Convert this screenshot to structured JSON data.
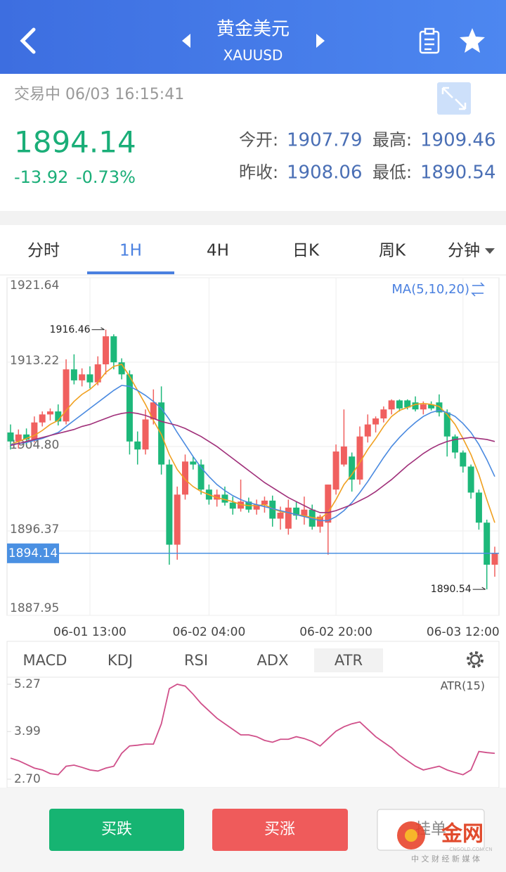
{
  "header": {
    "title": "黄金美元",
    "subtitle": "XAUUSD"
  },
  "status": "交易中 06/03 16:15:41",
  "quote": {
    "price": "1894.14",
    "change": "-13.92",
    "change_pct": "-0.73%",
    "stats": [
      {
        "label": "今开:",
        "value": "1907.79"
      },
      {
        "label": "最高:",
        "value": "1909.46"
      },
      {
        "label": "昨收:",
        "value": "1908.06"
      },
      {
        "label": "最低:",
        "value": "1890.54"
      }
    ]
  },
  "tabs": [
    "分时",
    "1H",
    "4H",
    "日K",
    "周K",
    "分钟"
  ],
  "indicator_tabs": [
    "MACD",
    "KDJ",
    "RSI",
    "ADX",
    "ATR"
  ],
  "buttons": [
    "买跌",
    "买涨",
    "挂单"
  ],
  "watermark": {
    "name": "金网",
    "url": "CNGOLD.COM.CN",
    "slogan": "中 文 财 经 新 媒 体"
  },
  "chart_data": [
    {
      "type": "candlestick",
      "legend": "MA(5,10,20)",
      "up_color": "#f0605f",
      "down_color": "#1db87a",
      "categories": [
        null,
        null,
        null,
        null,
        null,
        null,
        null,
        null,
        null,
        null,
        "06-01 13:00",
        null,
        null,
        null,
        null,
        null,
        null,
        null,
        null,
        null,
        null,
        null,
        null,
        null,
        null,
        "06-02 04:00",
        null,
        null,
        null,
        null,
        null,
        null,
        null,
        null,
        null,
        null,
        null,
        null,
        null,
        null,
        null,
        "06-02 20:00",
        null,
        null,
        null,
        null,
        null,
        null,
        null,
        null,
        null,
        null,
        null,
        null,
        null,
        null,
        null,
        "06-03 12:00",
        null,
        null,
        null,
        null
      ],
      "open": [
        1906.2,
        1905.3,
        1906.0,
        1905.5,
        1907.2,
        1908.0,
        1908.3,
        1907.3,
        1912.5,
        1911.4,
        1912.0,
        1911.2,
        1913.0,
        1915.8,
        1913.2,
        1912.0,
        1905.3,
        1904.5,
        1907.5,
        1909.2,
        1903.0,
        1895.0,
        1900.0,
        1903.3,
        1903.0,
        1900.5,
        1899.5,
        1900.0,
        1899.2,
        1898.6,
        1899.3,
        1898.5,
        1899.0,
        1899.4,
        1897.6,
        1896.6,
        1898.7,
        1897.9,
        1898.5,
        1896.8,
        1897.2,
        1900.5,
        1903.0,
        1903.8,
        1901.5,
        1905.8,
        1907.0,
        1907.6,
        1908.5,
        1909.4,
        1909.4,
        1909.2,
        1908.5,
        1909.0,
        1909.2,
        1908.2,
        1905.8,
        1904.2,
        1902.8,
        1900.2,
        1897.2,
        1893.0
      ],
      "high": [
        1907.0,
        1906.5,
        1906.6,
        1907.8,
        1908.3,
        1908.6,
        1909.0,
        1913.5,
        1914.0,
        1912.6,
        1912.8,
        1913.8,
        1916.46,
        1916.0,
        1913.6,
        1912.4,
        1906.3,
        1908.5,
        1910.5,
        1910.8,
        1903.5,
        1900.8,
        1904.0,
        1903.8,
        1903.5,
        1901.0,
        1900.5,
        1900.8,
        1899.8,
        1901.5,
        1899.7,
        1899.5,
        1899.8,
        1899.9,
        1898.8,
        1899.5,
        1899.3,
        1899.8,
        1899.0,
        1898.0,
        1901.0,
        1905.0,
        1908.5,
        1904.2,
        1906.8,
        1908.0,
        1907.8,
        1908.8,
        1909.5,
        1909.5,
        1909.5,
        1909.8,
        1909.3,
        1909.3,
        1910.0,
        1908.5,
        1906.0,
        1904.4,
        1903.0,
        1900.5,
        1897.5,
        1894.8
      ],
      "low": [
        1904.5,
        1904.6,
        1905.0,
        1905.2,
        1906.8,
        1907.4,
        1906.9,
        1907.0,
        1911.0,
        1910.8,
        1910.6,
        1910.9,
        1912.0,
        1912.5,
        1911.5,
        1904.0,
        1903.0,
        1904.0,
        1907.0,
        1902.0,
        1893.0,
        1893.5,
        1899.5,
        1902.5,
        1900.0,
        1899.0,
        1898.8,
        1898.9,
        1898.0,
        1898.3,
        1898.2,
        1898.0,
        1898.2,
        1896.8,
        1896.5,
        1896.0,
        1897.5,
        1897.0,
        1896.5,
        1896.2,
        1894.0,
        1900.0,
        1902.8,
        1900.3,
        1901.0,
        1905.2,
        1906.2,
        1907.2,
        1908.0,
        1908.3,
        1908.5,
        1908.3,
        1908.0,
        1908.4,
        1907.8,
        1903.8,
        1903.6,
        1902.2,
        1899.6,
        1896.5,
        1890.54,
        1891.8
      ],
      "close": [
        1905.3,
        1906.0,
        1905.5,
        1907.2,
        1908.0,
        1908.3,
        1907.3,
        1912.5,
        1911.4,
        1912.0,
        1911.2,
        1913.0,
        1915.8,
        1913.2,
        1912.0,
        1905.3,
        1904.5,
        1907.5,
        1909.2,
        1903.0,
        1895.0,
        1900.0,
        1903.3,
        1903.0,
        1900.5,
        1899.5,
        1900.0,
        1899.2,
        1898.6,
        1899.3,
        1898.5,
        1899.0,
        1899.4,
        1897.6,
        1898.2,
        1898.7,
        1897.9,
        1898.5,
        1896.8,
        1897.8,
        1901.0,
        1904.3,
        1904.8,
        1901.5,
        1905.8,
        1907.0,
        1907.6,
        1908.5,
        1909.4,
        1908.6,
        1908.7,
        1908.5,
        1909.0,
        1908.6,
        1908.2,
        1905.8,
        1904.2,
        1902.8,
        1900.2,
        1897.2,
        1893.0,
        1894.14
      ],
      "overlays": [
        {
          "color": "#f0a020",
          "values": [
            1905.0,
            1905.3,
            1905.6,
            1905.9,
            1906.4,
            1907.0,
            1907.4,
            1908.4,
            1909.3,
            1910.0,
            1910.5,
            1911.2,
            1912.2,
            1912.8,
            1913.0,
            1911.8,
            1910.4,
            1909.0,
            1907.4,
            1906.0,
            1904.0,
            1902.5,
            1901.5,
            1900.8,
            1900.3,
            1900.0,
            1899.7,
            1899.5,
            1899.3,
            1899.0,
            1898.9,
            1898.9,
            1899.0,
            1898.6,
            1898.3,
            1898.2,
            1898.0,
            1897.9,
            1897.7,
            1897.6,
            1898.2,
            1899.5,
            1901.0,
            1902.0,
            1903.2,
            1904.5,
            1905.6,
            1906.8,
            1907.8,
            1908.4,
            1908.7,
            1909.0,
            1909.1,
            1909.0,
            1908.8,
            1908.0,
            1907.0,
            1905.6,
            1904.0,
            1902.0,
            1899.5,
            1897.2
          ]
        },
        {
          "color": "#4a8ae0",
          "values": [
            1905.0,
            1905.1,
            1905.2,
            1905.4,
            1905.6,
            1905.9,
            1906.2,
            1906.8,
            1907.4,
            1908.0,
            1908.6,
            1909.2,
            1909.8,
            1910.4,
            1910.9,
            1910.8,
            1910.4,
            1909.9,
            1909.3,
            1908.6,
            1907.5,
            1906.2,
            1905.0,
            1903.8,
            1902.7,
            1901.8,
            1901.0,
            1900.4,
            1899.9,
            1899.5,
            1899.2,
            1899.0,
            1898.8,
            1898.6,
            1898.4,
            1898.2,
            1898.0,
            1897.8,
            1897.6,
            1897.4,
            1897.4,
            1897.8,
            1898.4,
            1899.2,
            1900.2,
            1901.3,
            1902.5,
            1903.7,
            1904.8,
            1905.7,
            1906.5,
            1907.2,
            1907.8,
            1908.2,
            1908.4,
            1908.2,
            1907.8,
            1907.1,
            1906.2,
            1905.0,
            1903.5,
            1901.8
          ]
        },
        {
          "color": "#a0307a",
          "values": [
            1904.9,
            1905.1,
            1905.3,
            1905.5,
            1905.7,
            1905.9,
            1906.1,
            1906.3,
            1906.5,
            1906.8,
            1907.0,
            1907.3,
            1907.6,
            1907.9,
            1908.1,
            1908.2,
            1908.1,
            1907.9,
            1907.6,
            1907.3,
            1907.1,
            1906.9,
            1906.6,
            1906.2,
            1905.8,
            1905.3,
            1904.8,
            1904.2,
            1903.6,
            1903.0,
            1902.4,
            1901.8,
            1901.2,
            1900.7,
            1900.2,
            1899.7,
            1899.3,
            1898.9,
            1898.5,
            1898.2,
            1898.2,
            1898.4,
            1898.7,
            1899.0,
            1899.4,
            1899.8,
            1900.3,
            1900.9,
            1901.5,
            1902.2,
            1902.9,
            1903.5,
            1904.1,
            1904.6,
            1905.0,
            1905.3,
            1905.5,
            1905.6,
            1905.7,
            1905.6,
            1905.5,
            1905.3
          ]
        }
      ],
      "high_label": 1916.46,
      "low_label": 1890.54,
      "last": 1894.14,
      "last_color": "#4a90e2",
      "ylim": [
        1887.95,
        1921.64
      ],
      "yticks": [
        1921.64,
        1913.22,
        {
          "value": 1904.8,
          "label": "1904.80"
        },
        1896.37,
        1887.95
      ],
      "grid": true
    },
    {
      "type": "line",
      "legend": "ATR(15)",
      "color": "#d0508a",
      "values": [
        3.27,
        3.2,
        3.1,
        3.0,
        2.95,
        2.85,
        2.82,
        3.05,
        3.08,
        3.02,
        2.95,
        2.92,
        3.0,
        3.05,
        3.4,
        3.6,
        3.62,
        3.65,
        3.65,
        4.2,
        5.15,
        5.27,
        5.22,
        5.0,
        4.75,
        4.55,
        4.35,
        4.2,
        4.05,
        3.9,
        3.9,
        3.85,
        3.75,
        3.7,
        3.78,
        3.78,
        3.85,
        3.8,
        3.72,
        3.6,
        3.8,
        4.0,
        4.12,
        4.2,
        4.25,
        4.05,
        3.85,
        3.7,
        3.55,
        3.35,
        3.2,
        3.05,
        2.95,
        3.0,
        3.05,
        2.95,
        2.88,
        2.82,
        2.95,
        3.45,
        3.42,
        3.4
      ],
      "ylim": [
        2.7,
        5.27
      ],
      "yticks": [
        5.27,
        3.99,
        {
          "value": 2.7,
          "label": "2.70"
        }
      ]
    }
  ]
}
